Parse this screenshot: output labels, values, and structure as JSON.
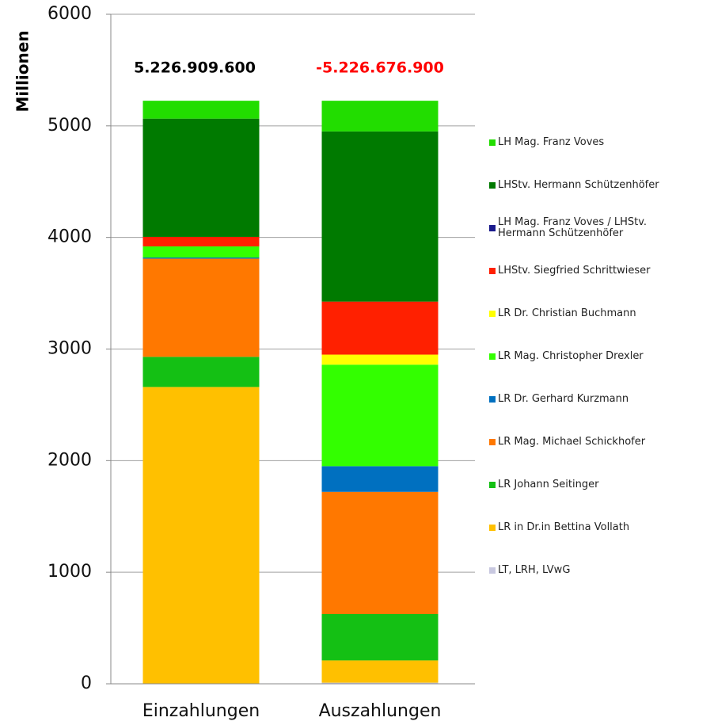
{
  "chart_data": {
    "type": "stacked_bar",
    "y_label": "Millionen",
    "categories": [
      "Einzahlungen",
      "Auszahlungen"
    ],
    "annotations": [
      {
        "text": "5.226.909.600",
        "color": "#000000"
      },
      {
        "text": "-5.226.676.900",
        "color": "#ff0000"
      }
    ],
    "ylim": [
      0,
      6000
    ],
    "yticks": [
      0,
      1000,
      2000,
      3000,
      4000,
      5000,
      6000
    ],
    "grid": true,
    "legend": "right",
    "series": [
      {
        "name": "LH Mag. Franz Voves",
        "color": "#22dd00",
        "values": [
          160,
          275
        ]
      },
      {
        "name": "LHStv. Hermann Schützenhöfer",
        "color": "#007a00",
        "values": [
          1060,
          1525
        ]
      },
      {
        "name": "LH Mag. Franz Voves / LHStv. Hermann Schützenhöfer",
        "color": "#1a1a8c",
        "values": [
          0,
          0
        ]
      },
      {
        "name": "LHStv. Siegfried Schrittwieser",
        "color": "#ff2000",
        "values": [
          85,
          475
        ]
      },
      {
        "name": "LR Dr. Christian Buchmann",
        "color": "#ffff00",
        "values": [
          0,
          90
        ]
      },
      {
        "name": "LR Mag. Christopher Drexler",
        "color": "#33ff00",
        "values": [
          100,
          910
        ]
      },
      {
        "name": "LR Dr. Gerhard Kurzmann",
        "color": "#0070c0",
        "values": [
          10,
          230
        ]
      },
      {
        "name": "LR Mag. Michael Schickhofer",
        "color": "#ff7800",
        "values": [
          880,
          1095
        ]
      },
      {
        "name": "LR Johann Seitinger",
        "color": "#14c014",
        "values": [
          270,
          415
        ]
      },
      {
        "name": "LR in Dr.in Bettina Vollath",
        "color": "#ffc000",
        "values": [
          2660,
          200
        ]
      },
      {
        "name": "LT, LRH, LVwG",
        "color": "#c8c8e0",
        "values": [
          0,
          10
        ]
      }
    ]
  }
}
